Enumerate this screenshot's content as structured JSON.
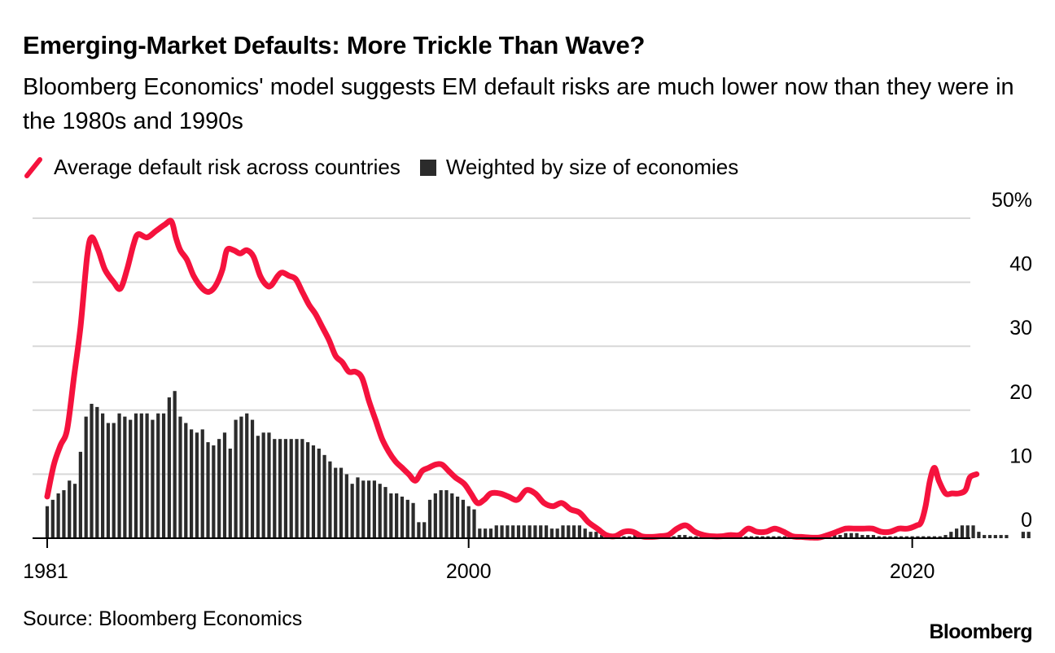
{
  "title": "Emerging-Market Defaults: More Trickle Than Wave?",
  "subtitle": "Bloomberg Economics' model suggests EM default risks are much lower now than they were in the 1980s and 1990s",
  "legend": {
    "line_label": "Average default risk across countries",
    "bar_label": "Weighted by size of economies"
  },
  "source": "Source: Bloomberg Economics",
  "logo": "Bloomberg",
  "colors": {
    "line": "#f5123d",
    "bars": "#2b2b2b",
    "grid": "#d8d8d8",
    "axis": "#000000"
  },
  "chart_data": {
    "type": "bar+line",
    "x_ticks": [
      {
        "value": 1981,
        "label": "1981"
      },
      {
        "value": 2000,
        "label": "2000"
      },
      {
        "value": 2020,
        "label": "2020"
      }
    ],
    "y_ticks": [
      {
        "value": 0,
        "label": "0"
      },
      {
        "value": 10,
        "label": "10"
      },
      {
        "value": 20,
        "label": "20"
      },
      {
        "value": 30,
        "label": "30"
      },
      {
        "value": 40,
        "label": "40"
      },
      {
        "value": 50,
        "label": "50%"
      }
    ],
    "xlim": [
      1981,
      2023.5
    ],
    "ylim": [
      0,
      50
    ],
    "grid": true,
    "legend_position": "top-left",
    "series": [
      {
        "name": "Average default risk across countries",
        "type": "line",
        "points": [
          [
            1981.0,
            6.5
          ],
          [
            1981.3,
            11.5
          ],
          [
            1981.6,
            14.5
          ],
          [
            1981.9,
            17
          ],
          [
            1982.2,
            25
          ],
          [
            1982.5,
            33
          ],
          [
            1982.8,
            44
          ],
          [
            1983.0,
            47
          ],
          [
            1983.3,
            45
          ],
          [
            1983.6,
            42
          ],
          [
            1984.0,
            40
          ],
          [
            1984.3,
            39
          ],
          [
            1984.6,
            42
          ],
          [
            1984.9,
            46
          ],
          [
            1985.1,
            47.5
          ],
          [
            1985.5,
            47
          ],
          [
            1985.9,
            48
          ],
          [
            1986.3,
            49
          ],
          [
            1986.6,
            49.5
          ],
          [
            1986.8,
            47
          ],
          [
            1987.0,
            45
          ],
          [
            1987.3,
            43.5
          ],
          [
            1987.6,
            41
          ],
          [
            1988.0,
            39
          ],
          [
            1988.3,
            38.5
          ],
          [
            1988.6,
            39.5
          ],
          [
            1988.9,
            42
          ],
          [
            1989.1,
            45
          ],
          [
            1989.4,
            45
          ],
          [
            1989.7,
            44.5
          ],
          [
            1990.0,
            45
          ],
          [
            1990.3,
            44
          ],
          [
            1990.6,
            41
          ],
          [
            1990.9,
            39.5
          ],
          [
            1991.1,
            39.5
          ],
          [
            1991.4,
            41
          ],
          [
            1991.6,
            41.5
          ],
          [
            1991.9,
            41
          ],
          [
            1992.2,
            40.5
          ],
          [
            1992.5,
            38.5
          ],
          [
            1992.8,
            36.5
          ],
          [
            1993.1,
            35
          ],
          [
            1993.4,
            33
          ],
          [
            1993.7,
            31
          ],
          [
            1994.0,
            28.5
          ],
          [
            1994.3,
            27.5
          ],
          [
            1994.6,
            26
          ],
          [
            1994.9,
            26
          ],
          [
            1995.2,
            25
          ],
          [
            1995.5,
            21.5
          ],
          [
            1995.8,
            18.5
          ],
          [
            1996.1,
            15.5
          ],
          [
            1996.4,
            13.5
          ],
          [
            1996.7,
            12
          ],
          [
            1997.0,
            11
          ],
          [
            1997.3,
            10
          ],
          [
            1997.6,
            9
          ],
          [
            1997.9,
            10.5
          ],
          [
            1998.2,
            11
          ],
          [
            1998.5,
            11.5
          ],
          [
            1998.8,
            11.5
          ],
          [
            1999.1,
            10.5
          ],
          [
            1999.4,
            9.5
          ],
          [
            1999.8,
            8.5
          ],
          [
            2000.1,
            7
          ],
          [
            2000.4,
            5.5
          ],
          [
            2000.7,
            6
          ],
          [
            2001.0,
            7
          ],
          [
            2001.4,
            7
          ],
          [
            2001.8,
            6.5
          ],
          [
            2002.2,
            6
          ],
          [
            2002.6,
            7.5
          ],
          [
            2003.0,
            7
          ],
          [
            2003.4,
            5.5
          ],
          [
            2003.8,
            5
          ],
          [
            2004.2,
            5.5
          ],
          [
            2004.6,
            4.5
          ],
          [
            2005.0,
            4
          ],
          [
            2005.4,
            2.5
          ],
          [
            2005.8,
            1.5
          ],
          [
            2006.2,
            0.5
          ],
          [
            2006.6,
            0.3
          ],
          [
            2007.0,
            1
          ],
          [
            2007.4,
            1
          ],
          [
            2007.8,
            0.3
          ],
          [
            2008.2,
            0.2
          ],
          [
            2008.6,
            0.3
          ],
          [
            2009.0,
            0.5
          ],
          [
            2009.4,
            1.5
          ],
          [
            2009.8,
            2
          ],
          [
            2010.2,
            1
          ],
          [
            2010.6,
            0.5
          ],
          [
            2011.0,
            0.3
          ],
          [
            2011.4,
            0.3
          ],
          [
            2011.8,
            0.5
          ],
          [
            2012.2,
            0.5
          ],
          [
            2012.6,
            1.5
          ],
          [
            2013.0,
            1
          ],
          [
            2013.4,
            1
          ],
          [
            2013.8,
            1.5
          ],
          [
            2014.2,
            1
          ],
          [
            2014.6,
            0.3
          ],
          [
            2015.0,
            0.2
          ],
          [
            2015.4,
            0.1
          ],
          [
            2015.8,
            0.1
          ],
          [
            2016.2,
            0.5
          ],
          [
            2016.6,
            1
          ],
          [
            2017.0,
            1.5
          ],
          [
            2017.4,
            1.5
          ],
          [
            2017.8,
            1.5
          ],
          [
            2018.2,
            1.5
          ],
          [
            2018.6,
            1
          ],
          [
            2019.0,
            1
          ],
          [
            2019.4,
            1.5
          ],
          [
            2019.8,
            1.5
          ],
          [
            2020.2,
            2
          ],
          [
            2020.4,
            2.5
          ],
          [
            2020.6,
            5
          ],
          [
            2020.8,
            9
          ],
          [
            2021.0,
            11
          ],
          [
            2021.2,
            9
          ],
          [
            2021.5,
            7
          ],
          [
            2021.8,
            7
          ],
          [
            2022.1,
            7
          ],
          [
            2022.4,
            7.5
          ],
          [
            2022.6,
            9.5
          ],
          [
            2022.9,
            10
          ]
        ]
      },
      {
        "name": "Weighted by size of economies",
        "type": "bar",
        "start": 1981.0,
        "step": 0.25,
        "values": [
          5,
          6,
          7,
          7.5,
          9,
          8.5,
          13.5,
          19,
          21,
          20.5,
          19.5,
          18,
          18,
          19.5,
          19,
          18.5,
          19.5,
          19.5,
          19.5,
          18.5,
          19.5,
          19.5,
          22,
          23,
          19,
          18,
          17,
          16.5,
          17,
          15,
          14.5,
          15.5,
          16.5,
          14,
          18.5,
          19,
          19.5,
          18.5,
          16,
          16.5,
          16.5,
          15.5,
          15.5,
          15.5,
          15.5,
          15.5,
          15.5,
          15,
          14.5,
          14,
          13,
          12,
          11,
          11,
          10,
          8.5,
          9.5,
          9,
          9,
          9,
          8.5,
          8,
          7,
          7,
          6.5,
          6,
          5.5,
          2.5,
          2.5,
          6,
          7,
          7.5,
          7.5,
          7,
          6.5,
          6,
          5,
          4.5,
          1.5,
          1.5,
          1.5,
          2,
          2,
          2,
          2,
          2,
          2,
          2,
          2,
          2,
          2,
          1.5,
          1.5,
          2,
          2,
          2,
          2,
          1.5,
          1,
          1,
          0.5,
          0.3,
          0.3,
          0.3,
          0.3,
          0.3,
          0.5,
          0.5,
          0.3,
          0.3,
          0.3,
          0.3,
          0.3,
          0.3,
          0.5,
          0.5,
          0.3,
          0.3,
          0.3,
          0.3,
          0.3,
          0.3,
          0.3,
          0.3,
          0.3,
          0.3,
          0.3,
          0.3,
          0.3,
          0.3,
          0.3,
          0.3,
          0.3,
          0.3,
          0.3,
          0.3,
          0.3,
          0.3,
          0.3,
          0.5,
          0.5,
          0.5,
          0.5,
          0.5,
          0.8,
          0.8,
          0.8,
          0.5,
          0.5,
          0.5,
          0.3,
          0.3,
          0.3,
          0.3,
          0.3,
          0.3,
          0.3,
          0.3,
          0.3,
          0.3,
          0.3,
          0.3,
          0.5,
          1,
          1.5,
          2,
          2,
          2,
          1,
          0.5,
          0.5,
          0.5,
          0.5,
          0.5,
          0,
          0,
          1,
          1
        ]
      }
    ]
  }
}
